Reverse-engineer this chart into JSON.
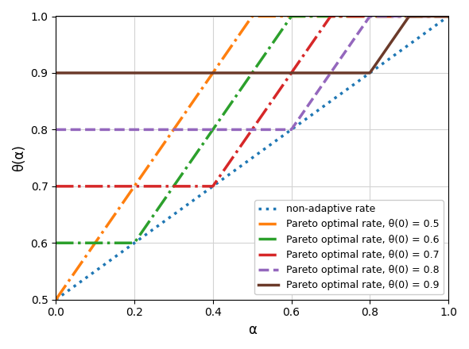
{
  "xlim": [
    0.0,
    1.0
  ],
  "ylim": [
    0.5,
    1.0
  ],
  "xlabel": "α",
  "ylabel": "θ(α)",
  "non_adaptive": {
    "label": "non-adaptive rate",
    "color": "#1f77b4",
    "linestyle": "dotted",
    "linewidth": 2.5
  },
  "pareto_curves": [
    {
      "label": "Pareto optimal rate, θ(0) = 0.5",
      "color": "#ff7f0e",
      "linestyle": "dashdot",
      "linewidth": 2.5,
      "theta0": 0.5
    },
    {
      "label": "Pareto optimal rate, θ(0) = 0.6",
      "color": "#2ca02c",
      "linestyle": "dashdot",
      "linewidth": 2.5,
      "theta0": 0.6
    },
    {
      "label": "Pareto optimal rate, θ(0) = 0.7",
      "color": "#d62728",
      "linestyle": "dashdot",
      "linewidth": 2.5,
      "theta0": 0.7
    },
    {
      "label": "Pareto optimal rate, θ(0) = 0.8",
      "color": "#9467bd",
      "linestyle": "dashed",
      "linewidth": 2.5,
      "theta0": 0.8
    },
    {
      "label": "Pareto optimal rate, θ(0) = 0.9",
      "color": "#6b3a2a",
      "linestyle": "solid",
      "linewidth": 2.5,
      "theta0": 0.9
    }
  ],
  "legend_loc": "lower right",
  "grid": true,
  "figsize": [
    5.9,
    4.4
  ],
  "dpi": 100
}
